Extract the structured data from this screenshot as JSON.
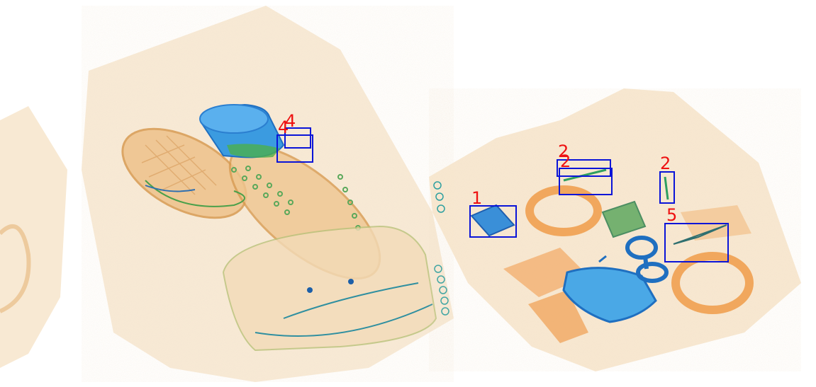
{
  "image": {
    "kind": "x-ray baggage scan",
    "box_color": "#0a14d8",
    "label_color": "#ee1111"
  },
  "detections": [
    {
      "label": "1"
    },
    {
      "label": "2"
    },
    {
      "label": "2"
    },
    {
      "label": "2"
    },
    {
      "label": "4"
    },
    {
      "label": "4"
    },
    {
      "label": "5"
    }
  ]
}
